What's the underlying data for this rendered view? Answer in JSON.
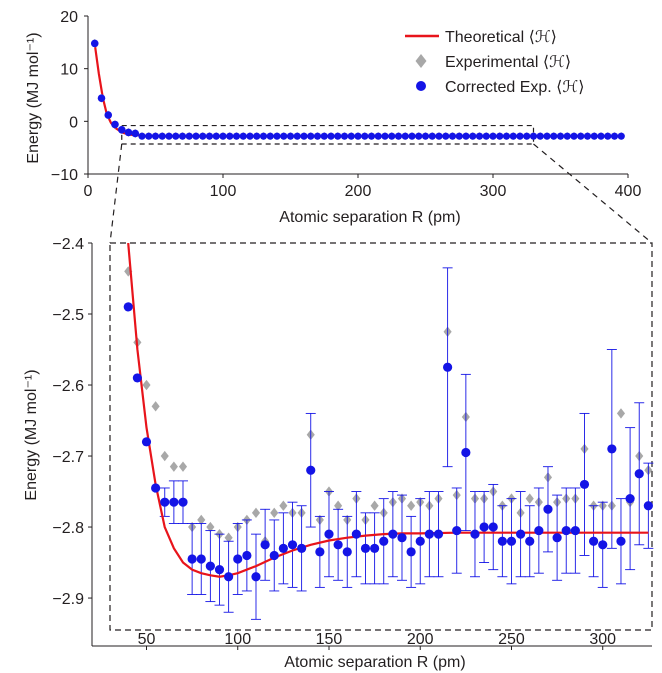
{
  "colors": {
    "theoretical": "#e8141b",
    "experimental": "#a8a8a8",
    "corrected": "#1414e6",
    "axis": "#231f20"
  },
  "legend": {
    "position": "top-right",
    "items": [
      {
        "label": "Theoretical ⟨ℋ⟩",
        "series": "theoretical",
        "marker": "line"
      },
      {
        "label": "Experimental ⟨ℋ⟩",
        "series": "experimental",
        "marker": "diamond"
      },
      {
        "label": "Corrected Exp. ⟨ℋ⟩",
        "series": "corrected",
        "marker": "circle"
      }
    ]
  },
  "chart_data": [
    {
      "type": "line",
      "panel": "overview",
      "xlabel": "Atomic separation R (pm)",
      "ylabel": "Energy (MJ mol⁻¹)",
      "xlim": [
        0,
        400
      ],
      "ylim": [
        -10,
        20
      ],
      "xticks": [
        0,
        100,
        200,
        300,
        400
      ],
      "yticks": [
        -10,
        0,
        10,
        20
      ],
      "grid": false,
      "inset_region": {
        "x": [
          25,
          330
        ],
        "y": [
          -4.3,
          -0.8
        ]
      },
      "series": [
        {
          "name": "Theoretical ⟨ℋ⟩",
          "kind": "line",
          "x": [
            5,
            8,
            11,
            14,
            17,
            20,
            25,
            30,
            40,
            60,
            100,
            200,
            300,
            395
          ],
          "y": [
            14.6,
            9.1,
            4.5,
            1.3,
            -0.3,
            -1.2,
            -2.1,
            -2.5,
            -2.7,
            -2.85,
            -2.85,
            -2.81,
            -2.81,
            -2.81
          ]
        },
        {
          "name": "Experimental ⟨ℋ⟩",
          "kind": "markers",
          "x": [
            5,
            10,
            15,
            20,
            25,
            30,
            35
          ],
          "y": [
            14.8,
            4.4,
            1.2,
            -0.6,
            -1.6,
            -2.1,
            -2.3
          ]
        },
        {
          "name": "Corrected Exp. ⟨ℋ⟩",
          "kind": "markers",
          "x": [
            5,
            10,
            15,
            20,
            25,
            30,
            35
          ],
          "y": [
            14.8,
            4.4,
            1.2,
            -0.6,
            -1.6,
            -2.1,
            -2.3
          ]
        }
      ]
    },
    {
      "type": "scatter",
      "panel": "zoom",
      "xlabel": "Atomic separation R (pm)",
      "ylabel": "Energy (MJ mol⁻¹)",
      "xlim": [
        30,
        327
      ],
      "ylim": [
        -2.945,
        -2.4
      ],
      "xticks": [
        50,
        100,
        150,
        200,
        250,
        300
      ],
      "yticks": [
        -2.9,
        -2.8,
        -2.7,
        -2.6,
        -2.5,
        -2.4
      ],
      "grid": false,
      "theory_curve": {
        "x": [
          40,
          45,
          50,
          55,
          60,
          65,
          70,
          75,
          80,
          85,
          90,
          95,
          100,
          110,
          120,
          130,
          140,
          150,
          160,
          170,
          180,
          190,
          200,
          220,
          240,
          260,
          280,
          300,
          325
        ],
        "y": [
          -2.4,
          -2.55,
          -2.66,
          -2.74,
          -2.8,
          -2.83,
          -2.85,
          -2.86,
          -2.865,
          -2.868,
          -2.87,
          -2.868,
          -2.865,
          -2.855,
          -2.843,
          -2.833,
          -2.825,
          -2.819,
          -2.815,
          -2.812,
          -2.81,
          -2.809,
          -2.809,
          -2.808,
          -2.808,
          -2.808,
          -2.808,
          -2.808,
          -2.808
        ]
      },
      "experimental": {
        "x": [
          40,
          45,
          50,
          55,
          60,
          65,
          70,
          75,
          80,
          85,
          90,
          95,
          100,
          105,
          110,
          115,
          120,
          125,
          130,
          135,
          140,
          145,
          150,
          155,
          160,
          165,
          170,
          175,
          180,
          185,
          190,
          195,
          200,
          205,
          210,
          215,
          220,
          225,
          230,
          235,
          240,
          245,
          250,
          255,
          260,
          265,
          270,
          275,
          280,
          285,
          290,
          295,
          300,
          305,
          310,
          315,
          320,
          325
        ],
        "y": [
          -2.44,
          -2.54,
          -2.6,
          -2.63,
          -2.7,
          -2.715,
          -2.715,
          -2.8,
          -2.79,
          -2.8,
          -2.81,
          -2.815,
          -2.8,
          -2.79,
          -2.78,
          -2.82,
          -2.78,
          -2.77,
          -2.78,
          -2.78,
          -2.67,
          -2.79,
          -2.75,
          -2.77,
          -2.79,
          -2.76,
          -2.79,
          -2.77,
          -2.78,
          -2.765,
          -2.76,
          -2.77,
          -2.765,
          -2.77,
          -2.76,
          -2.525,
          -2.755,
          -2.645,
          -2.76,
          -2.76,
          -2.75,
          -2.77,
          -2.76,
          -2.78,
          -2.76,
          -2.765,
          -2.73,
          -2.765,
          -2.76,
          -2.76,
          -2.69,
          -2.77,
          -2.77,
          -2.77,
          -2.64,
          -2.765,
          -2.7,
          -2.72
        ]
      },
      "corrected": {
        "x": [
          40,
          45,
          50,
          55,
          60,
          65,
          70,
          75,
          80,
          85,
          90,
          95,
          100,
          105,
          110,
          115,
          120,
          125,
          130,
          135,
          140,
          145,
          150,
          155,
          160,
          165,
          170,
          175,
          180,
          185,
          190,
          195,
          200,
          205,
          210,
          215,
          220,
          225,
          230,
          235,
          240,
          245,
          250,
          255,
          260,
          265,
          270,
          275,
          280,
          285,
          290,
          295,
          300,
          305,
          310,
          315,
          320,
          325
        ],
        "y": [
          -2.49,
          -2.59,
          -2.68,
          -2.745,
          -2.765,
          -2.765,
          -2.765,
          -2.845,
          -2.845,
          -2.855,
          -2.86,
          -2.87,
          -2.845,
          -2.84,
          -2.87,
          -2.825,
          -2.84,
          -2.83,
          -2.825,
          -2.83,
          -2.72,
          -2.835,
          -2.81,
          -2.825,
          -2.835,
          -2.81,
          -2.83,
          -2.83,
          -2.82,
          -2.81,
          -2.815,
          -2.835,
          -2.82,
          -2.81,
          -2.81,
          -2.575,
          -2.805,
          -2.695,
          -2.81,
          -2.8,
          -2.8,
          -2.82,
          -2.82,
          -2.81,
          -2.82,
          -2.805,
          -2.775,
          -2.815,
          -2.805,
          -2.805,
          -2.74,
          -2.82,
          -2.825,
          -2.69,
          -2.82,
          -2.76,
          -2.725,
          -2.77
        ],
        "err": [
          0.0,
          0.0,
          0.0,
          0.0,
          0.02,
          0.03,
          0.03,
          0.05,
          0.05,
          0.05,
          0.05,
          0.05,
          0.05,
          0.05,
          0.06,
          0.05,
          0.05,
          0.05,
          0.06,
          0.06,
          0.08,
          0.05,
          0.06,
          0.05,
          0.05,
          0.06,
          0.05,
          0.05,
          0.06,
          0.06,
          0.06,
          0.05,
          0.06,
          0.06,
          0.06,
          0.14,
          0.06,
          0.11,
          0.06,
          0.05,
          0.06,
          0.05,
          0.06,
          0.06,
          0.05,
          0.06,
          0.06,
          0.06,
          0.06,
          0.06,
          0.1,
          0.05,
          0.06,
          0.14,
          0.06,
          0.1,
          0.1,
          0.06
        ]
      }
    }
  ]
}
